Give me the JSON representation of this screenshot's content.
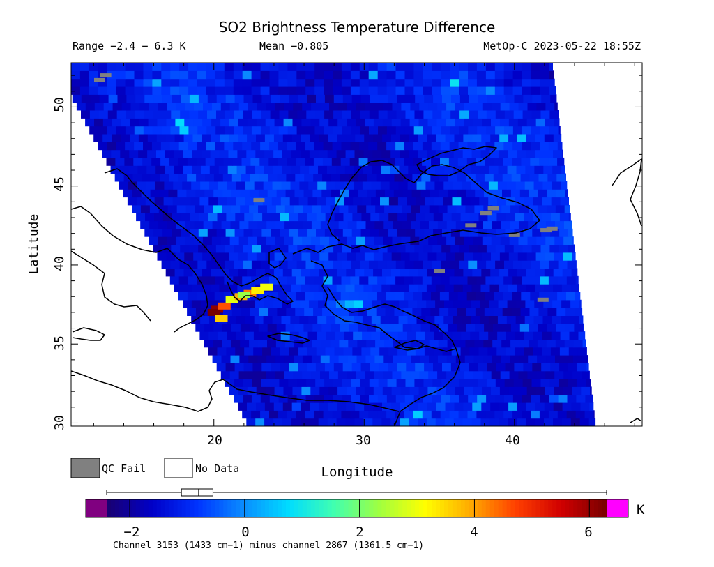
{
  "chart_data": {
    "type": "heatmap",
    "title": "SO2 Brightness Temperature Difference",
    "range_text": "Range −2.4 − 6.3 K",
    "mean_text": "Mean −0.805",
    "satellite_time_text": "MetOp-C 2023-05-22 18:55Z",
    "xlabel": "Longitude",
    "ylabel": "Latitude",
    "xlim": [
      10.5,
      48.5
    ],
    "ylim": [
      29.8,
      52.8
    ],
    "x_ticks": [
      "20",
      "30",
      "40"
    ],
    "y_ticks": [
      "30",
      "35",
      "40",
      "45",
      "50"
    ],
    "colorbar": {
      "range": [
        -2.4,
        6.3
      ],
      "ticks": [
        "−2",
        "0",
        "2",
        "4",
        "6"
      ],
      "unit": "K",
      "colors": [
        "#1a0070",
        "#0000c8",
        "#0033ff",
        "#0a8cff",
        "#00dcff",
        "#40ffb0",
        "#a0ff40",
        "#ffff00",
        "#ffaa00",
        "#ff4000",
        "#d00000",
        "#780000"
      ],
      "under_color": "#800080",
      "over_color": "#ff00ff",
      "box_summary": {
        "min": -2.4,
        "q1": -1.1,
        "median": -0.8,
        "q3": -0.55,
        "max": 6.3
      }
    },
    "legend": [
      {
        "label": "QC Fail",
        "color": "#808080"
      },
      {
        "label": "No Data",
        "color": "#ffffff"
      }
    ],
    "footnote": "Channel 3153 (1433 cm−1) minus channel 2867 (1361.5 cm−1)",
    "swath_edges": {
      "west_top": [
        10.5,
        50.7
      ],
      "west_bottom": [
        22.3,
        29.8
      ],
      "east_top": [
        42.5,
        52.8
      ],
      "east_bottom": [
        45.4,
        29.8
      ]
    },
    "so2_plume": [
      {
        "lon": 20.2,
        "lat": 37.2,
        "value": 6.1
      },
      {
        "lon": 20.0,
        "lat": 37.0,
        "value": 6.3
      },
      {
        "lon": 20.7,
        "lat": 37.4,
        "value": 4.6
      },
      {
        "lon": 20.5,
        "lat": 36.6,
        "value": 3.6
      },
      {
        "lon": 21.2,
        "lat": 37.8,
        "value": 2.9
      },
      {
        "lon": 22.4,
        "lat": 38.2,
        "value": 4.3
      },
      {
        "lon": 22.9,
        "lat": 38.4,
        "value": 3.3
      },
      {
        "lon": 23.5,
        "lat": 38.6,
        "value": 3.0
      },
      {
        "lon": 21.8,
        "lat": 38.0,
        "value": 3.9
      },
      {
        "lon": 22.0,
        "lat": 38.1,
        "value": 2.3
      }
    ],
    "qc_fail_points": [
      {
        "lon": 12.4,
        "lat": 51.7
      },
      {
        "lon": 12.8,
        "lat": 52.0
      },
      {
        "lon": 23.0,
        "lat": 44.1
      },
      {
        "lon": 38.1,
        "lat": 43.3
      },
      {
        "lon": 38.6,
        "lat": 43.6
      },
      {
        "lon": 37.1,
        "lat": 42.5
      },
      {
        "lon": 40.0,
        "lat": 41.9
      },
      {
        "lon": 42.1,
        "lat": 42.2
      },
      {
        "lon": 42.5,
        "lat": 42.3
      },
      {
        "lon": 35.0,
        "lat": 39.6
      },
      {
        "lon": 41.9,
        "lat": 37.8
      }
    ]
  }
}
